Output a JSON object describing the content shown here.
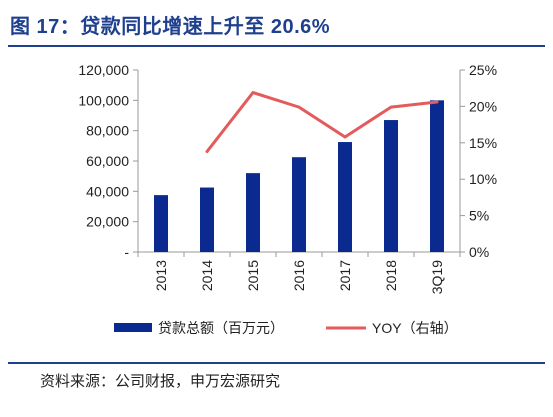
{
  "header": {
    "title": "图 17：贷款同比增速上升至 20.6%"
  },
  "footer": {
    "source": "资料来源：公司财报，申万宏源研究"
  },
  "colors": {
    "accent": "#1f3f8f",
    "bar": "#0a2a8f",
    "line": "#e35b5b"
  },
  "chart_data": {
    "type": "bar",
    "categories": [
      "2013",
      "2014",
      "2015",
      "2016",
      "2017",
      "2018",
      "3Q19"
    ],
    "series": [
      {
        "name": "贷款总额（百万元）",
        "type": "bar",
        "axis": "left",
        "values": [
          37500,
          42500,
          52000,
          62500,
          72500,
          87000,
          100000
        ]
      },
      {
        "name": "YOY（右轴）",
        "type": "line",
        "axis": "right",
        "values": [
          null,
          13.8,
          21.9,
          19.9,
          15.8,
          19.9,
          20.6
        ]
      }
    ],
    "y_left": {
      "min": 0,
      "max": 120000,
      "ticks": [
        "-",
        "20,000",
        "40,000",
        "60,000",
        "80,000",
        "100,000",
        "120,000"
      ]
    },
    "y_right": {
      "min": 0,
      "max": 25,
      "unit": "%",
      "ticks": [
        "0%",
        "5%",
        "10%",
        "15%",
        "20%",
        "25%"
      ]
    },
    "legend_position": "bottom",
    "grid": false
  }
}
